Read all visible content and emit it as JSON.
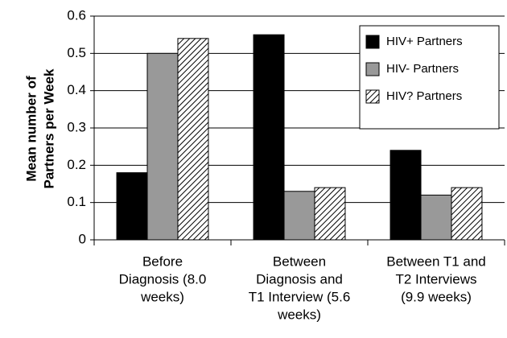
{
  "chart_data": {
    "type": "bar",
    "y_label": [
      "Mean number of",
      "Partners per Week"
    ],
    "categories": [
      [
        "Before",
        "Diagnosis (8.0",
        "weeks)"
      ],
      [
        "Between",
        "Diagnosis and",
        "T1 Interview (5.6",
        "weeks)"
      ],
      [
        "Between T1 and",
        "T2 Interviews",
        "(9.9 weeks)"
      ]
    ],
    "series": [
      {
        "name": "HIV+ Partners",
        "color": "#000000",
        "values": [
          0.18,
          0.55,
          0.24
        ]
      },
      {
        "name": "HIV- Partners",
        "color": "#999999",
        "values": [
          0.5,
          0.13,
          0.12
        ]
      },
      {
        "name": "HIV? Partners",
        "color": "#ffffff",
        "pattern": "diagonal-hatch",
        "values": [
          0.54,
          0.14,
          0.14
        ]
      }
    ],
    "ylim": [
      0,
      0.6
    ],
    "yticks": [
      0,
      0.1,
      0.2,
      0.3,
      0.4,
      0.5,
      0.6
    ],
    "grid": true,
    "legend": "upper right"
  }
}
